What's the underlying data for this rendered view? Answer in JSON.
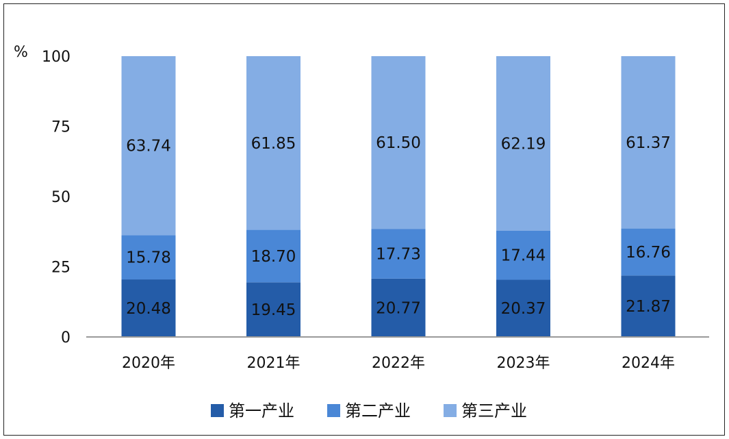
{
  "chart_data": {
    "type": "bar",
    "stacked": true,
    "ylabel": "%",
    "ylim": [
      0,
      100
    ],
    "yticks": [
      0,
      25,
      50,
      75,
      100
    ],
    "categories": [
      "2020年",
      "2021年",
      "2022年",
      "2023年",
      "2024年"
    ],
    "series": [
      {
        "name": "第一产业",
        "color": "#245ca8",
        "values": [
          20.48,
          19.45,
          20.77,
          20.37,
          21.87
        ],
        "labels": [
          "20.48",
          "19.45",
          "20.77",
          "20.37",
          "21.87"
        ]
      },
      {
        "name": "第二产业",
        "color": "#4a87d6",
        "values": [
          15.78,
          18.7,
          17.73,
          17.44,
          16.76
        ],
        "labels": [
          "15.78",
          "18.70",
          "17.73",
          "17.44",
          "16.76"
        ]
      },
      {
        "name": "第三产业",
        "color": "#84ade4",
        "values": [
          63.74,
          61.85,
          61.5,
          62.19,
          61.37
        ],
        "labels": [
          "63.74",
          "61.85",
          "61.50",
          "62.19",
          "61.37"
        ]
      }
    ],
    "grid": false,
    "legend_position": "bottom"
  }
}
